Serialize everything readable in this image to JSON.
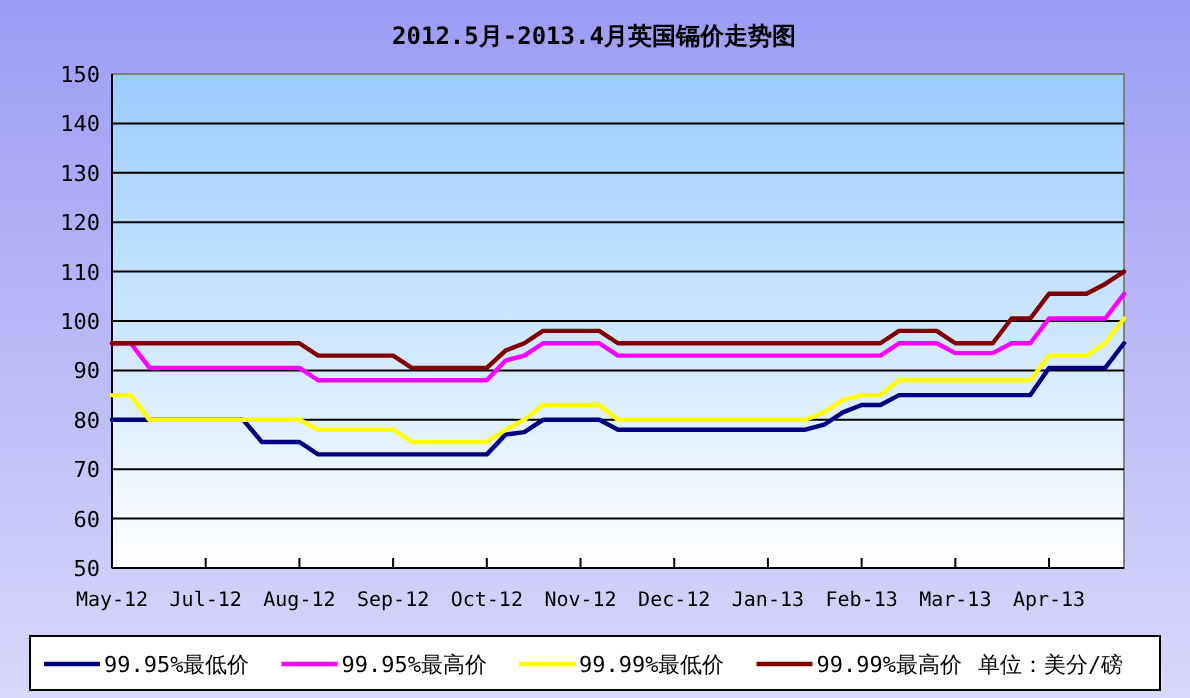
{
  "chart_data": {
    "type": "line",
    "title": "2012.5月-2013.4月英国镉价走势图",
    "categories": [
      "May-12",
      null,
      null,
      null,
      null,
      "Jul-12",
      null,
      null,
      null,
      null,
      "Aug-12",
      null,
      null,
      null,
      null,
      "Sep-12",
      null,
      null,
      null,
      null,
      "Oct-12",
      null,
      null,
      null,
      null,
      "Nov-12",
      null,
      null,
      null,
      null,
      "Dec-12",
      null,
      null,
      null,
      null,
      "Jan-13",
      null,
      null,
      null,
      null,
      "Feb-13",
      null,
      null,
      null,
      null,
      "Mar-13",
      null,
      null,
      null,
      null,
      "Apr-13",
      null,
      null,
      null,
      null
    ],
    "ylim": [
      50,
      150
    ],
    "yticks": [
      50,
      60,
      70,
      80,
      90,
      100,
      110,
      120,
      130,
      140,
      150
    ],
    "grid": "y",
    "legend": "bottom",
    "marker": "none",
    "line_style": "solid",
    "annotations": [
      "单位：美分/磅"
    ],
    "series": [
      {
        "name": "99.95%最低价",
        "color": "#000080",
        "values": [
          80,
          80,
          80,
          null,
          null,
          null,
          null,
          80,
          75.5,
          75.5,
          75.5,
          73,
          73,
          73,
          73,
          73,
          73,
          73,
          73,
          73,
          73,
          77,
          77.5,
          80,
          80,
          80,
          80,
          78,
          78,
          78,
          78,
          78,
          78,
          78,
          78,
          78,
          78,
          78,
          79,
          81.5,
          83,
          83,
          85,
          85,
          85,
          85,
          85,
          85,
          85,
          85,
          90.5,
          90.5,
          90.5,
          90.5,
          95.5
        ]
      },
      {
        "name": "99.95%最高价",
        "color": "#ff00ff",
        "values": [
          95.5,
          95.5,
          90.5,
          90.5,
          90.5,
          90.5,
          90.5,
          90.5,
          90.5,
          90.5,
          90.5,
          88,
          88,
          88,
          88,
          88,
          88,
          88,
          88,
          88,
          88,
          92,
          93,
          95.5,
          95.5,
          95.5,
          95.5,
          93,
          93,
          93,
          93,
          93,
          93,
          93,
          93,
          93,
          93,
          93,
          93,
          93,
          93,
          93,
          95.5,
          95.5,
          95.5,
          93.5,
          93.5,
          93.5,
          95.5,
          95.5,
          100.5,
          100.5,
          100.5,
          100.5,
          105.5
        ]
      },
      {
        "name": "99.99%最低价",
        "color": "#ffff00",
        "values": [
          85,
          85,
          80,
          80,
          80,
          80,
          80,
          80,
          80,
          80,
          80,
          78,
          78,
          78,
          78,
          78,
          75.5,
          75.5,
          75.5,
          75.5,
          75.5,
          78,
          80,
          83,
          83,
          83,
          83,
          80,
          80,
          80,
          80,
          80,
          80,
          80,
          80,
          80,
          80,
          80,
          81.5,
          84,
          85,
          85,
          88,
          88,
          88,
          88,
          88,
          88,
          88,
          88,
          93,
          93,
          93,
          95.5,
          100.5
        ]
      },
      {
        "name": "99.99%最高价",
        "color": "#800000",
        "values": [
          95.5,
          95.5,
          95.5,
          95.5,
          95.5,
          95.5,
          95.5,
          95.5,
          95.5,
          95.5,
          95.5,
          93,
          93,
          93,
          93,
          93,
          90.5,
          90.5,
          90.5,
          90.5,
          90.5,
          94,
          95.5,
          98,
          98,
          98,
          98,
          95.5,
          95.5,
          95.5,
          95.5,
          95.5,
          95.5,
          95.5,
          95.5,
          95.5,
          95.5,
          95.5,
          95.5,
          95.5,
          95.5,
          95.5,
          98,
          98,
          98,
          95.5,
          95.5,
          95.5,
          100.5,
          100.5,
          105.5,
          105.5,
          105.5,
          107.5,
          110
        ]
      }
    ]
  }
}
